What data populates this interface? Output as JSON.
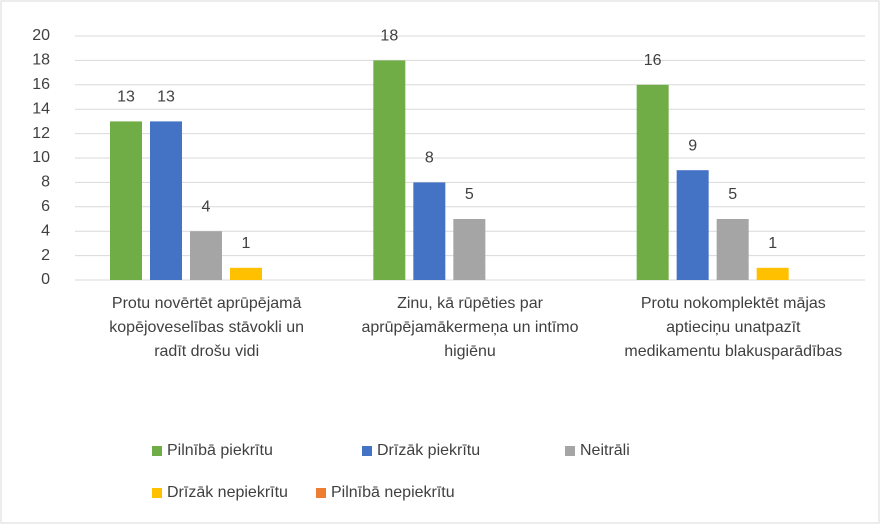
{
  "chart_data": {
    "type": "bar",
    "categories": [
      "Protu novērtēt aprūpējamā kopējoveselības stāvokli un radīt drošu vidi",
      "Zinu, kā rūpēties par aprūpējamākermeņa un intīmo higiēnu",
      "Protu nokomplektēt mājas aptieciņu unatpazīt medikamentu blakusparādības"
    ],
    "series": [
      {
        "name": "Pilnībā piekrītu",
        "color": "#70ad47",
        "values": [
          13,
          18,
          16
        ]
      },
      {
        "name": "Drīzāk piekrītu",
        "color": "#4472c4",
        "values": [
          13,
          8,
          9
        ]
      },
      {
        "name": "Neitrāli",
        "color": "#a5a5a5",
        "values": [
          4,
          5,
          5
        ]
      },
      {
        "name": "Drīzāk nepiekrītu",
        "color": "#ffc000",
        "values": [
          1,
          null,
          1
        ]
      },
      {
        "name": "Pilnībā nepiekrītu",
        "color": "#ed7d31",
        "values": [
          null,
          null,
          null
        ]
      }
    ],
    "ylim": [
      0,
      20
    ],
    "yticks": [
      0,
      2,
      4,
      6,
      8,
      10,
      12,
      14,
      16,
      18,
      20
    ],
    "grid": true,
    "legend": "bottom"
  }
}
